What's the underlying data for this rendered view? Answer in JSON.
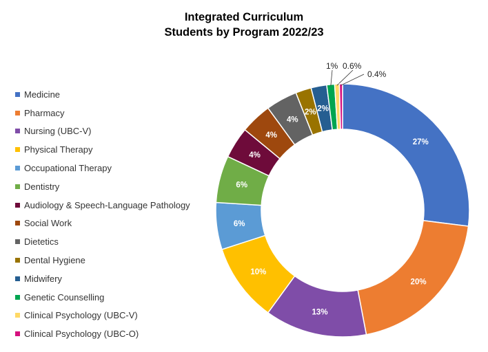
{
  "chart_data": {
    "type": "pie",
    "title": "Integrated Curriculum",
    "subtitle": "Students by Program 2022/23",
    "legend_position": "left",
    "slices": [
      {
        "name": "Medicine",
        "value": 27,
        "label": "27%",
        "color": "#4472C4"
      },
      {
        "name": "Pharmacy",
        "value": 20,
        "label": "20%",
        "color": "#ED7D31"
      },
      {
        "name": "Nursing (UBC-V)",
        "value": 13,
        "label": "13%",
        "color": "#7F4DA8"
      },
      {
        "name": "Physical Therapy",
        "value": 10,
        "label": "10%",
        "color": "#FFC000"
      },
      {
        "name": "Occupational Therapy",
        "value": 6,
        "label": "6%",
        "color": "#5B9BD5"
      },
      {
        "name": "Dentistry",
        "value": 6,
        "label": "6%",
        "color": "#70AD47"
      },
      {
        "name": "Audiology & Speech-Language Pathology",
        "value": 4,
        "label": "4%",
        "color": "#6E0B3A"
      },
      {
        "name": "Social Work",
        "value": 4,
        "label": "4%",
        "color": "#9E480E"
      },
      {
        "name": "Dietetics",
        "value": 4,
        "label": "4%",
        "color": "#636363"
      },
      {
        "name": "Dental Hygiene",
        "value": 2,
        "label": "2%",
        "color": "#997300"
      },
      {
        "name": "Midwifery",
        "value": 2,
        "label": "2%",
        "color": "#255E91"
      },
      {
        "name": "Genetic Counselling",
        "value": 1,
        "label": "1%",
        "color": "#00A550"
      },
      {
        "name": "Clinical Psychology (UBC-V)",
        "value": 0.6,
        "label": "0.6%",
        "color": "#FFD966"
      },
      {
        "name": "Clinical Psychology (UBC-O)",
        "value": 0.4,
        "label": "0.4%",
        "color": "#D5117E"
      }
    ]
  }
}
